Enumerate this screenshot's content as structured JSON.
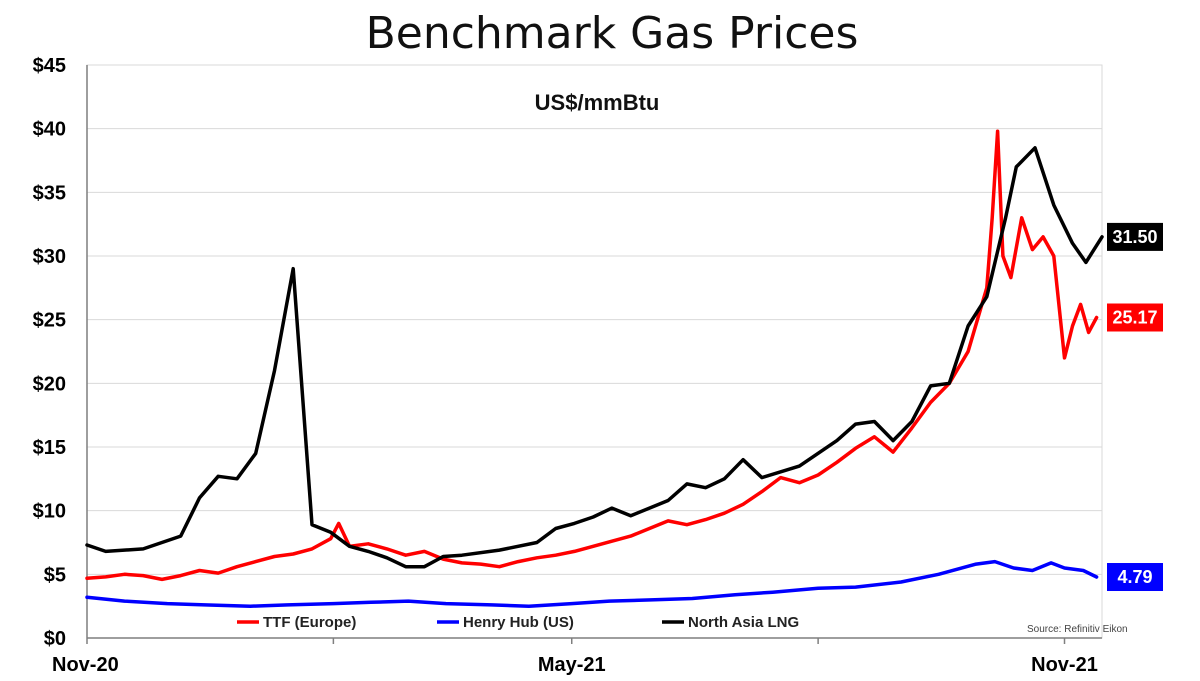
{
  "chart_data": {
    "type": "line",
    "title": "Benchmark Gas Prices",
    "unit_label": "US$/mmBtu",
    "source": "Source: Refinitiv Eikon",
    "x_range": [
      "2020-11-01",
      "2021-11-15"
    ],
    "x_ticks": [
      {
        "date": "2020-11-01",
        "label": "Nov-20"
      },
      {
        "date": "2021-02-01",
        "label": ""
      },
      {
        "date": "2021-05-01",
        "label": "May-21"
      },
      {
        "date": "2021-08-01",
        "label": ""
      },
      {
        "date": "2021-11-01",
        "label": "Nov-21"
      }
    ],
    "ylim": [
      0,
      45
    ],
    "y_ticks": [
      {
        "value": 0,
        "label": "$0"
      },
      {
        "value": 5,
        "label": "$5"
      },
      {
        "value": 10,
        "label": "$10"
      },
      {
        "value": 15,
        "label": "$15"
      },
      {
        "value": 20,
        "label": "$20"
      },
      {
        "value": 25,
        "label": "$25"
      },
      {
        "value": 30,
        "label": "$30"
      },
      {
        "value": 35,
        "label": "$35"
      },
      {
        "value": 40,
        "label": "$40"
      },
      {
        "value": 45,
        "label": "$45"
      }
    ],
    "grid": true,
    "legend_position": "bottom",
    "series": [
      {
        "name": "TTF (Europe)",
        "color": "#ff0000",
        "last_label": "25.17",
        "points": [
          [
            "2020-11-01",
            4.7
          ],
          [
            "2020-11-08",
            4.8
          ],
          [
            "2020-11-15",
            5.0
          ],
          [
            "2020-11-22",
            4.9
          ],
          [
            "2020-11-29",
            4.6
          ],
          [
            "2020-12-06",
            4.9
          ],
          [
            "2020-12-13",
            5.3
          ],
          [
            "2020-12-20",
            5.1
          ],
          [
            "2020-12-27",
            5.6
          ],
          [
            "2021-01-03",
            6.0
          ],
          [
            "2021-01-10",
            6.4
          ],
          [
            "2021-01-17",
            6.6
          ],
          [
            "2021-01-24",
            7.0
          ],
          [
            "2021-01-31",
            7.8
          ],
          [
            "2021-02-03",
            9.0
          ],
          [
            "2021-02-07",
            7.2
          ],
          [
            "2021-02-14",
            7.4
          ],
          [
            "2021-02-21",
            7.0
          ],
          [
            "2021-02-28",
            6.5
          ],
          [
            "2021-03-07",
            6.8
          ],
          [
            "2021-03-14",
            6.2
          ],
          [
            "2021-03-21",
            5.9
          ],
          [
            "2021-03-28",
            5.8
          ],
          [
            "2021-04-04",
            5.6
          ],
          [
            "2021-04-11",
            6.0
          ],
          [
            "2021-04-18",
            6.3
          ],
          [
            "2021-04-25",
            6.5
          ],
          [
            "2021-05-02",
            6.8
          ],
          [
            "2021-05-09",
            7.2
          ],
          [
            "2021-05-16",
            7.6
          ],
          [
            "2021-05-23",
            8.0
          ],
          [
            "2021-05-30",
            8.6
          ],
          [
            "2021-06-06",
            9.2
          ],
          [
            "2021-06-13",
            8.9
          ],
          [
            "2021-06-20",
            9.3
          ],
          [
            "2021-06-27",
            9.8
          ],
          [
            "2021-07-04",
            10.5
          ],
          [
            "2021-07-11",
            11.5
          ],
          [
            "2021-07-18",
            12.6
          ],
          [
            "2021-07-25",
            12.2
          ],
          [
            "2021-08-01",
            12.8
          ],
          [
            "2021-08-08",
            13.8
          ],
          [
            "2021-08-15",
            14.9
          ],
          [
            "2021-08-22",
            15.8
          ],
          [
            "2021-08-29",
            14.6
          ],
          [
            "2021-09-05",
            16.5
          ],
          [
            "2021-09-12",
            18.5
          ],
          [
            "2021-09-19",
            20.0
          ],
          [
            "2021-09-26",
            22.5
          ],
          [
            "2021-10-03",
            27.5
          ],
          [
            "2021-10-05",
            33.0
          ],
          [
            "2021-10-07",
            39.8
          ],
          [
            "2021-10-09",
            30.0
          ],
          [
            "2021-10-12",
            28.3
          ],
          [
            "2021-10-16",
            33.0
          ],
          [
            "2021-10-20",
            30.5
          ],
          [
            "2021-10-24",
            31.5
          ],
          [
            "2021-10-28",
            30.0
          ],
          [
            "2021-11-01",
            22.0
          ],
          [
            "2021-11-04",
            24.5
          ],
          [
            "2021-11-07",
            26.2
          ],
          [
            "2021-11-10",
            24.0
          ],
          [
            "2021-11-13",
            25.17
          ]
        ]
      },
      {
        "name": "Henry Hub (US)",
        "color": "#0000ff",
        "last_label": "4.79",
        "points": [
          [
            "2020-11-01",
            3.2
          ],
          [
            "2020-11-15",
            2.9
          ],
          [
            "2020-12-01",
            2.7
          ],
          [
            "2020-12-15",
            2.6
          ],
          [
            "2021-01-01",
            2.5
          ],
          [
            "2021-01-15",
            2.6
          ],
          [
            "2021-02-01",
            2.7
          ],
          [
            "2021-02-15",
            2.8
          ],
          [
            "2021-03-01",
            2.9
          ],
          [
            "2021-03-15",
            2.7
          ],
          [
            "2021-04-01",
            2.6
          ],
          [
            "2021-04-15",
            2.5
          ],
          [
            "2021-05-01",
            2.7
          ],
          [
            "2021-05-15",
            2.9
          ],
          [
            "2021-06-01",
            3.0
          ],
          [
            "2021-06-15",
            3.1
          ],
          [
            "2021-07-01",
            3.4
          ],
          [
            "2021-07-15",
            3.6
          ],
          [
            "2021-08-01",
            3.9
          ],
          [
            "2021-08-15",
            4.0
          ],
          [
            "2021-09-01",
            4.4
          ],
          [
            "2021-09-15",
            5.0
          ],
          [
            "2021-09-29",
            5.8
          ],
          [
            "2021-10-06",
            6.0
          ],
          [
            "2021-10-13",
            5.5
          ],
          [
            "2021-10-20",
            5.3
          ],
          [
            "2021-10-27",
            5.9
          ],
          [
            "2021-11-01",
            5.5
          ],
          [
            "2021-11-08",
            5.3
          ],
          [
            "2021-11-13",
            4.79
          ]
        ]
      },
      {
        "name": "North Asia LNG",
        "color": "#000000",
        "last_label": "31.50",
        "points": [
          [
            "2020-11-01",
            7.3
          ],
          [
            "2020-11-08",
            6.8
          ],
          [
            "2020-11-22",
            7.0
          ],
          [
            "2020-12-06",
            8.0
          ],
          [
            "2020-12-13",
            11.0
          ],
          [
            "2020-12-20",
            12.7
          ],
          [
            "2020-12-27",
            12.5
          ],
          [
            "2021-01-03",
            14.5
          ],
          [
            "2021-01-10",
            21.0
          ],
          [
            "2021-01-17",
            29.0
          ],
          [
            "2021-01-24",
            8.9
          ],
          [
            "2021-01-31",
            8.3
          ],
          [
            "2021-02-07",
            7.2
          ],
          [
            "2021-02-14",
            6.8
          ],
          [
            "2021-02-21",
            6.3
          ],
          [
            "2021-02-28",
            5.6
          ],
          [
            "2021-03-07",
            5.6
          ],
          [
            "2021-03-14",
            6.4
          ],
          [
            "2021-03-21",
            6.5
          ],
          [
            "2021-04-04",
            6.9
          ],
          [
            "2021-04-18",
            7.5
          ],
          [
            "2021-04-25",
            8.6
          ],
          [
            "2021-05-02",
            9.0
          ],
          [
            "2021-05-09",
            9.5
          ],
          [
            "2021-05-16",
            10.2
          ],
          [
            "2021-05-23",
            9.6
          ],
          [
            "2021-06-06",
            10.8
          ],
          [
            "2021-06-13",
            12.1
          ],
          [
            "2021-06-20",
            11.8
          ],
          [
            "2021-06-27",
            12.5
          ],
          [
            "2021-07-04",
            14.0
          ],
          [
            "2021-07-11",
            12.6
          ],
          [
            "2021-07-25",
            13.5
          ],
          [
            "2021-08-08",
            15.5
          ],
          [
            "2021-08-15",
            16.8
          ],
          [
            "2021-08-22",
            17.0
          ],
          [
            "2021-08-29",
            15.5
          ],
          [
            "2021-09-05",
            17.0
          ],
          [
            "2021-09-12",
            19.8
          ],
          [
            "2021-09-19",
            20.0
          ],
          [
            "2021-09-26",
            24.5
          ],
          [
            "2021-10-03",
            26.8
          ],
          [
            "2021-10-10",
            33.0
          ],
          [
            "2021-10-14",
            37.0
          ],
          [
            "2021-10-21",
            38.5
          ],
          [
            "2021-10-28",
            34.0
          ],
          [
            "2021-11-04",
            31.0
          ],
          [
            "2021-11-09",
            29.5
          ],
          [
            "2021-11-15",
            31.5
          ]
        ]
      }
    ]
  }
}
